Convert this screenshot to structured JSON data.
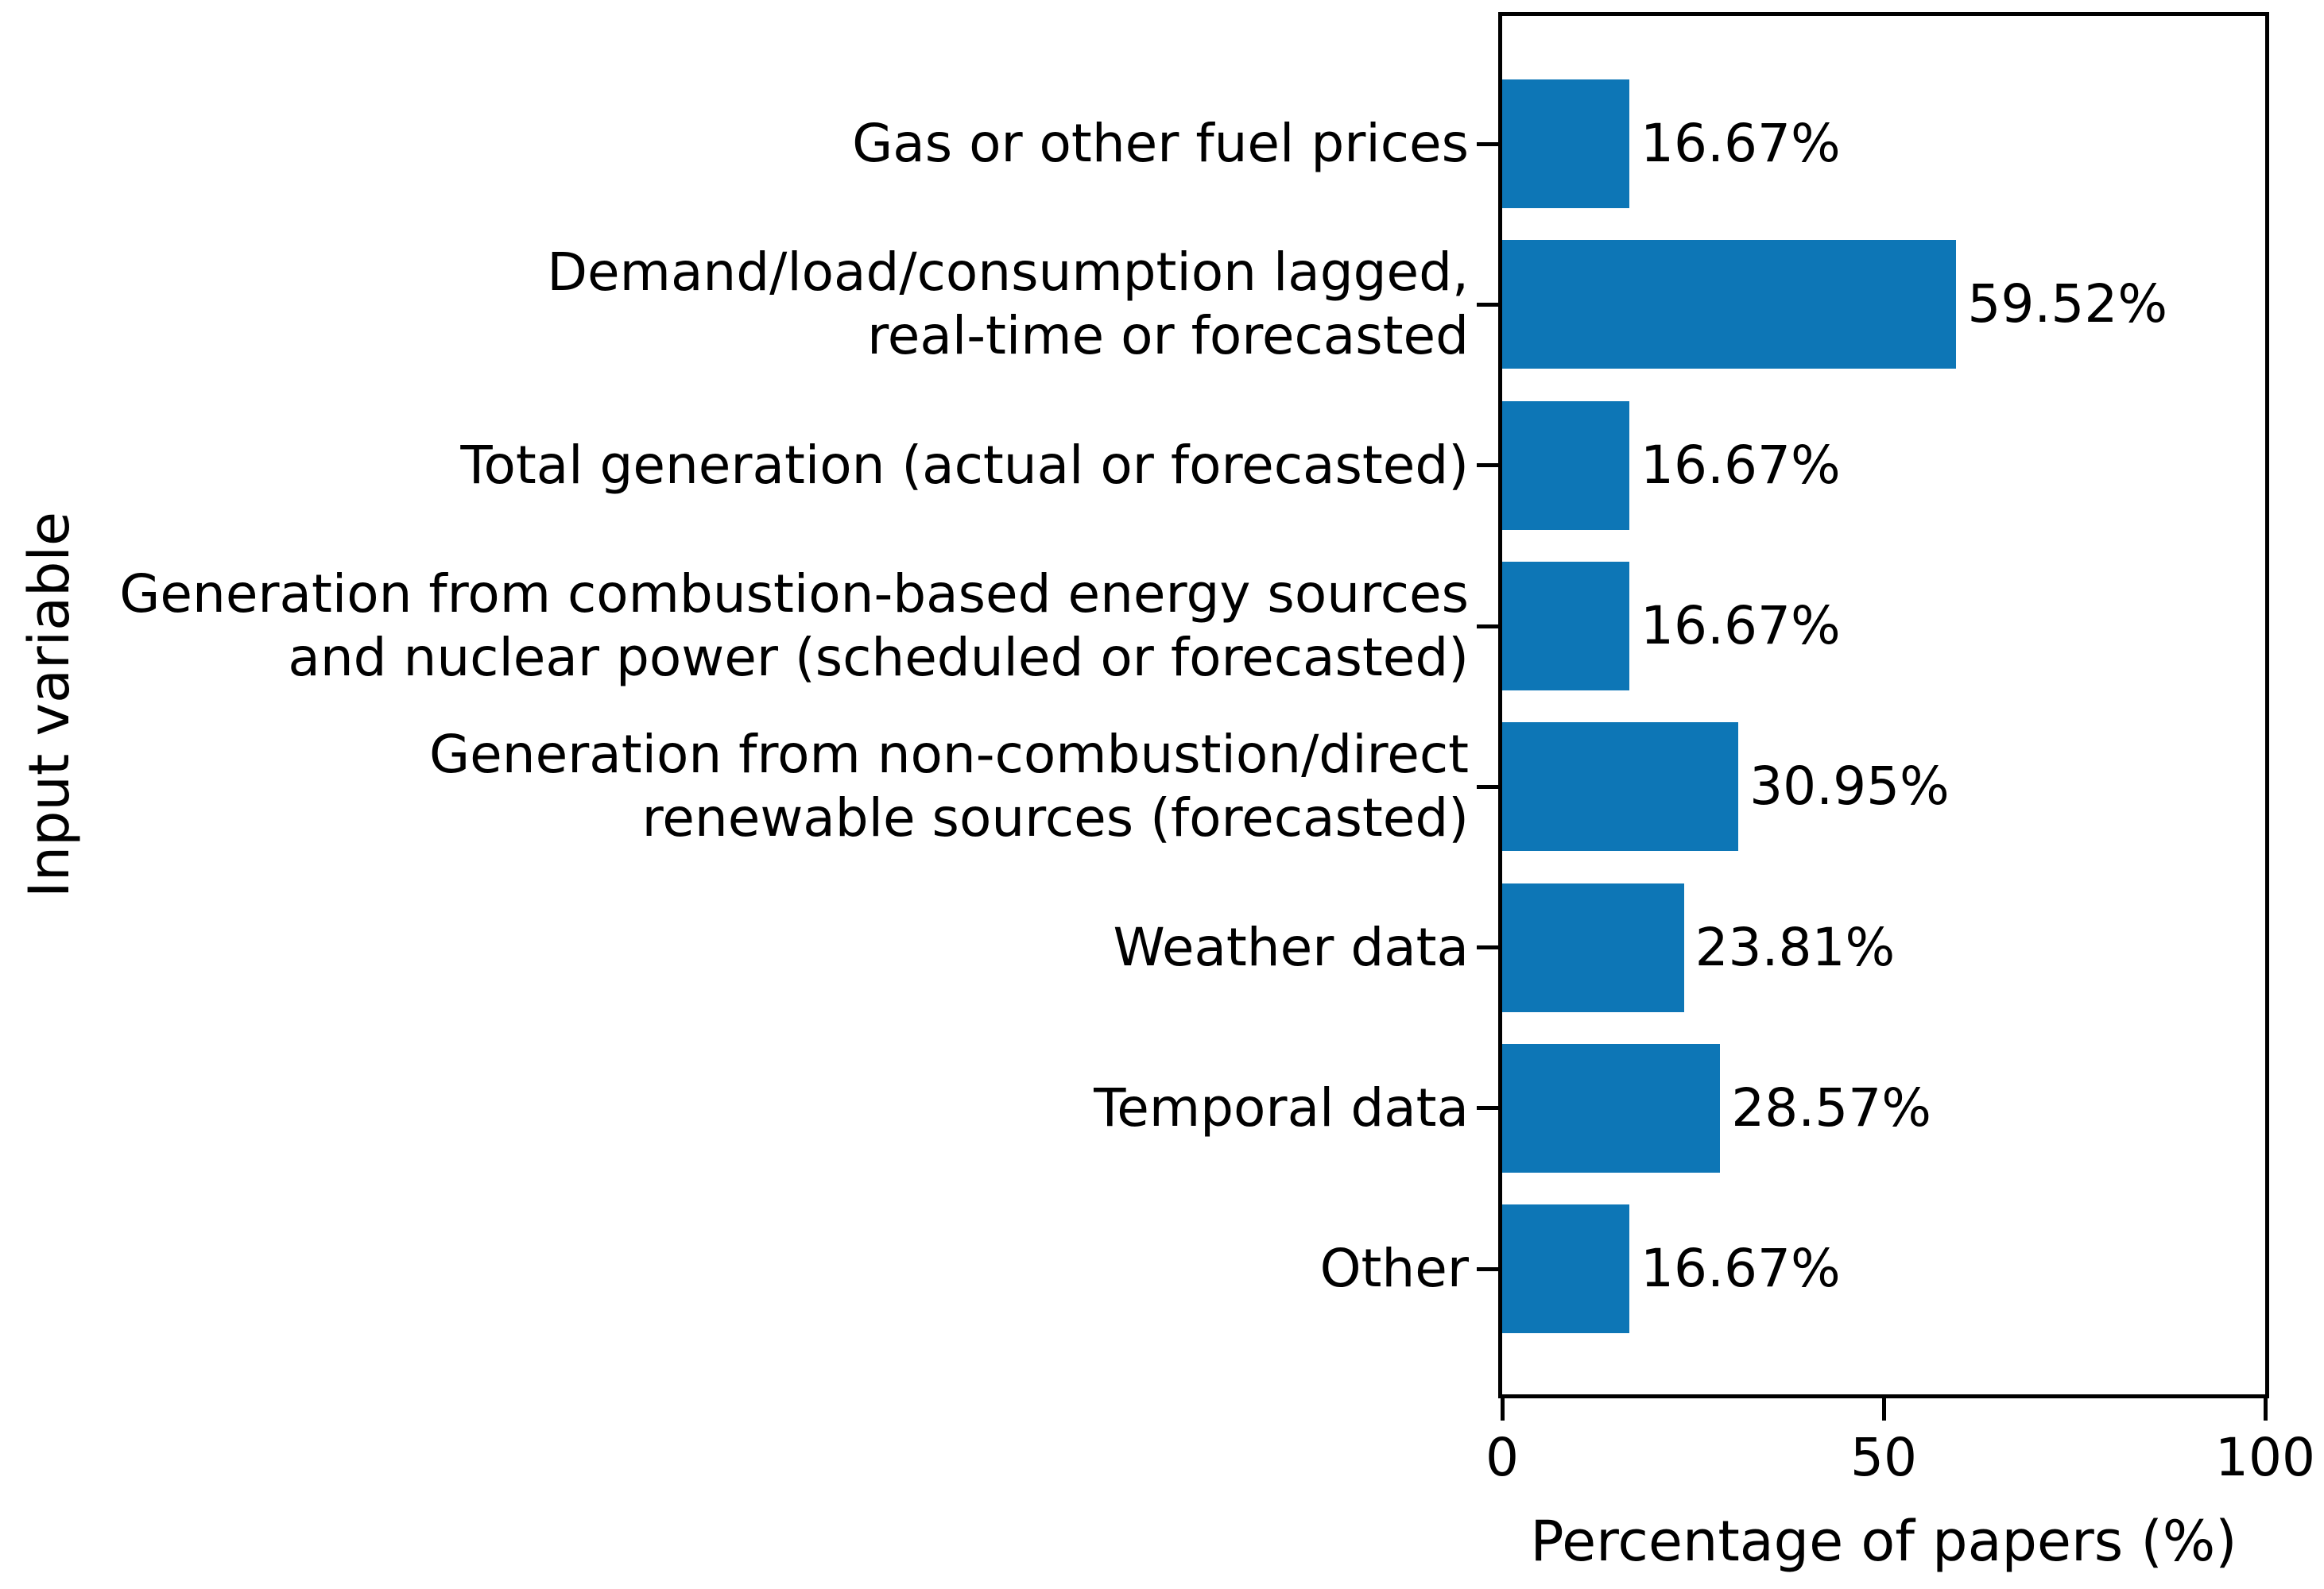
{
  "chart_data": {
    "type": "bar",
    "orientation": "horizontal",
    "title": "",
    "xlabel": "Percentage of papers (%)",
    "ylabel": "Input variable",
    "xlim": [
      0,
      100
    ],
    "xticks": [
      "0",
      "50",
      "100"
    ],
    "xtick_values": [
      0,
      50,
      100
    ],
    "grid": false,
    "legend": "none",
    "bar_color": "#0d76b6",
    "text_color": "#000000",
    "categories": [
      "Gas or other fuel prices",
      "Demand/load/consumption lagged,\nreal-time or forecasted",
      "Total generation (actual or forecasted)",
      "Generation from combustion-based energy sources\nand nuclear power (scheduled or forecasted)",
      "Generation from non-combustion/direct\nrenewable sources (forecasted)",
      "Weather data",
      "Temporal data",
      "Other"
    ],
    "values": [
      16.67,
      59.52,
      16.67,
      16.67,
      30.95,
      23.81,
      28.57,
      16.67
    ],
    "value_labels": [
      "16.67%",
      "59.52%",
      "16.67%",
      "16.67%",
      "30.95%",
      "23.81%",
      "28.57%",
      "16.67%"
    ]
  }
}
